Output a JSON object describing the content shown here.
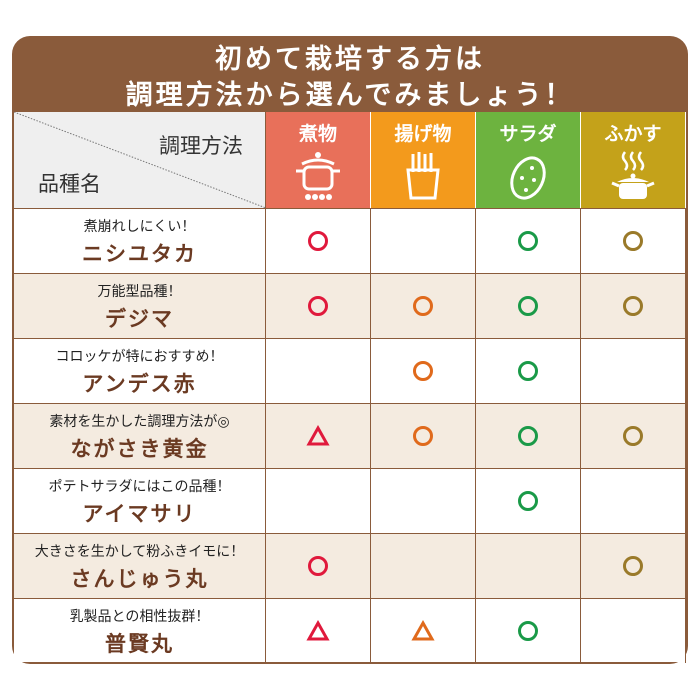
{
  "title": {
    "line1": "初めて栽培する方は",
    "line2": "調理方法から選んでみましょう！"
  },
  "header": {
    "cooking_method_label": "調理方法",
    "variety_label": "品種名"
  },
  "methods": [
    {
      "label": "煮物",
      "icon": "pot-on-stove-icon",
      "color": "#e8705a",
      "mark_color": "#e0193c"
    },
    {
      "label": "揚げ物",
      "icon": "french-fries-icon",
      "color": "#f39a1c",
      "mark_color": "#e06a1c"
    },
    {
      "label": "サラダ",
      "icon": "potato-icon",
      "color": "#6db33f",
      "mark_color": "#1a9a48"
    },
    {
      "label": "ふかす",
      "icon": "steaming-pot-icon",
      "color": "#c4a21a",
      "mark_color": "#9a7a2a"
    }
  ],
  "rows": [
    {
      "tagline": "煮崩れしにくい！",
      "name": "ニシユタカ",
      "marks": [
        "circle",
        "",
        "circle",
        "circle"
      ]
    },
    {
      "tagline": "万能型品種！",
      "name": "デジマ",
      "marks": [
        "circle",
        "circle",
        "circle",
        "circle"
      ]
    },
    {
      "tagline": "コロッケが特におすすめ！",
      "name": "アンデス赤",
      "marks": [
        "",
        "circle",
        "circle",
        ""
      ]
    },
    {
      "tagline": "素材を生かした調理方法が◎",
      "name": "ながさき黄金",
      "marks": [
        "triangle",
        "circle",
        "circle",
        "circle"
      ]
    },
    {
      "tagline": "ポテトサラダにはこの品種！",
      "name": "アイマサリ",
      "marks": [
        "",
        "",
        "circle",
        ""
      ]
    },
    {
      "tagline": "大きさを生かして粉ふきイモに！",
      "name": "さんじゅう丸",
      "marks": [
        "circle",
        "",
        "",
        "circle"
      ]
    },
    {
      "tagline": "乳製品との相性抜群！",
      "name": "普賢丸",
      "marks": [
        "triangle",
        "triangle",
        "circle",
        ""
      ]
    }
  ]
}
